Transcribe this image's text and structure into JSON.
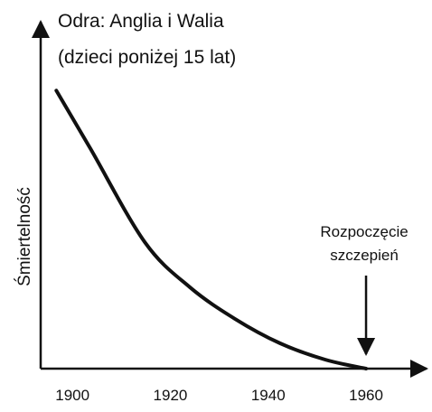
{
  "chart_data": {
    "type": "line",
    "title": [
      "Odra: Anglia i Walia",
      "(dzieci poniżej 15 lat)"
    ],
    "y_label": "Śmiertelność",
    "x": [
      1896.7,
      1903.7,
      1914.8,
      1924,
      1933.2,
      1942.4,
      1951.7,
      1960
    ],
    "series": [
      {
        "name": "Śmiertelność",
        "color": "#111111",
        "values": [
          81,
          64,
          36.8,
          23.7,
          14.5,
          7.4,
          2.6,
          0
        ]
      }
    ],
    "xlim": [
      1893.5,
      1972
    ],
    "xticks": [
      1900,
      1920,
      1940,
      1960
    ],
    "ylim": [
      0,
      100
    ],
    "annotation": {
      "lines": [
        "Rozpoczęcie",
        "szczepień"
      ],
      "x": 1960
    }
  }
}
